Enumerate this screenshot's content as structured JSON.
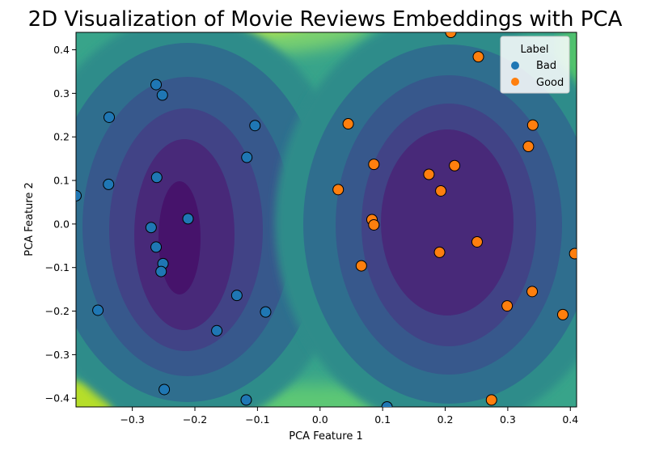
{
  "chart_data": {
    "type": "scatter",
    "title": "2D Visualization of Movie Reviews Embeddings with PCA",
    "xlabel": "PCA Feature 1",
    "ylabel": "PCA Feature 2",
    "xlim": [
      -0.39,
      0.41
    ],
    "ylim": [
      -0.42,
      0.44
    ],
    "xticks": [
      -0.3,
      -0.2,
      -0.1,
      0.0,
      0.1,
      0.2,
      0.3,
      0.4
    ],
    "xtick_labels": [
      "−0.3",
      "−0.2",
      "−0.1",
      "0.0",
      "0.1",
      "0.2",
      "0.3",
      "0.4"
    ],
    "yticks": [
      -0.4,
      -0.3,
      -0.2,
      -0.1,
      0.0,
      0.1,
      0.2,
      0.3,
      0.4
    ],
    "ytick_labels": [
      "−0.4",
      "−0.3",
      "−0.2",
      "−0.1",
      "0.0",
      "0.1",
      "0.2",
      "0.3",
      "0.4"
    ],
    "background": "filled density contour (viridis), two low-density basins around the clusters",
    "legend": {
      "title": "Label",
      "placement": "top-right",
      "entries": [
        "Bad",
        "Good"
      ]
    },
    "series": [
      {
        "name": "Bad",
        "color": "#1f77b4",
        "points": [
          [
            -0.262,
            0.32
          ],
          [
            -0.252,
            0.296
          ],
          [
            -0.337,
            0.245
          ],
          [
            -0.104,
            0.226
          ],
          [
            -0.117,
            0.153
          ],
          [
            -0.261,
            0.107
          ],
          [
            -0.338,
            0.091
          ],
          [
            -0.211,
            0.012
          ],
          [
            -0.27,
            -0.008
          ],
          [
            -0.262,
            -0.053
          ],
          [
            -0.251,
            -0.091
          ],
          [
            -0.254,
            -0.109
          ],
          [
            -0.133,
            -0.164
          ],
          [
            -0.355,
            -0.198
          ],
          [
            -0.087,
            -0.202
          ],
          [
            -0.165,
            -0.245
          ],
          [
            -0.249,
            -0.38
          ],
          [
            -0.118,
            -0.404
          ],
          [
            -0.39,
            0.065
          ],
          [
            0.107,
            -0.42
          ]
        ]
      },
      {
        "name": "Good",
        "color": "#ff7f0e",
        "points": [
          [
            0.209,
            0.44
          ],
          [
            0.253,
            0.384
          ],
          [
            0.045,
            0.23
          ],
          [
            0.34,
            0.227
          ],
          [
            0.333,
            0.178
          ],
          [
            0.086,
            0.137
          ],
          [
            0.215,
            0.134
          ],
          [
            0.174,
            0.114
          ],
          [
            0.029,
            0.079
          ],
          [
            0.193,
            0.076
          ],
          [
            0.083,
            0.01
          ],
          [
            0.086,
            -0.002
          ],
          [
            0.251,
            -0.041
          ],
          [
            0.066,
            -0.096
          ],
          [
            0.191,
            -0.065
          ],
          [
            0.407,
            -0.068
          ],
          [
            0.339,
            -0.155
          ],
          [
            0.299,
            -0.188
          ],
          [
            0.388,
            -0.208
          ],
          [
            0.274,
            -0.404
          ]
        ]
      }
    ]
  }
}
